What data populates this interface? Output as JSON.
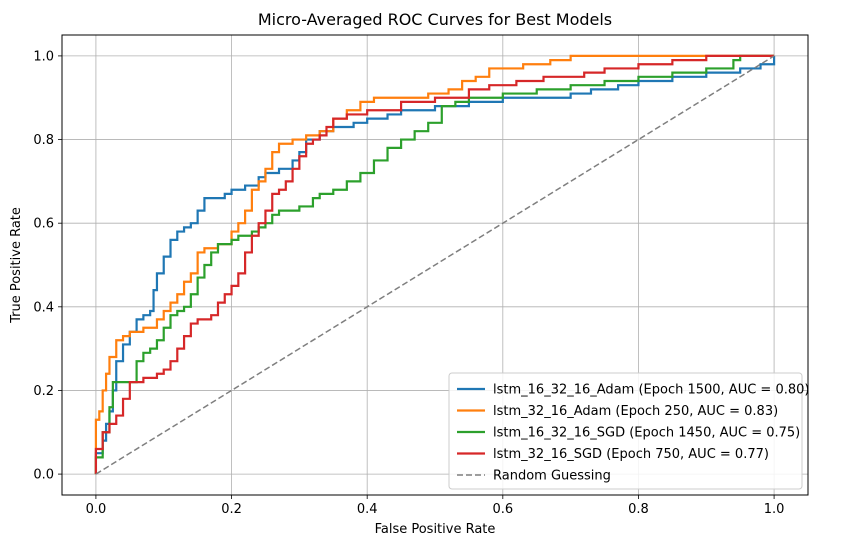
{
  "chart_data": {
    "type": "line",
    "title": "Micro-Averaged ROC Curves for Best Models",
    "xlabel": "False Positive Rate",
    "ylabel": "True Positive Rate",
    "xlim": [
      -0.05,
      1.05
    ],
    "ylim": [
      -0.05,
      1.05
    ],
    "xticks": [
      "0.0",
      "0.2",
      "0.4",
      "0.6",
      "0.8",
      "1.0"
    ],
    "yticks": [
      "0.0",
      "0.2",
      "0.4",
      "0.6",
      "0.8",
      "1.0"
    ],
    "grid": true,
    "legend_position": "lower-right",
    "series": [
      {
        "name": "lstm_16_32_16_Adam (Epoch 1500, AUC = 0.80)",
        "color": "#1f77b4",
        "dashed": false,
        "points": [
          [
            0,
            0
          ],
          [
            0,
            0.05
          ],
          [
            0.01,
            0.08
          ],
          [
            0.015,
            0.12
          ],
          [
            0.02,
            0.15
          ],
          [
            0.025,
            0.2
          ],
          [
            0.03,
            0.27
          ],
          [
            0.04,
            0.31
          ],
          [
            0.05,
            0.34
          ],
          [
            0.06,
            0.37
          ],
          [
            0.07,
            0.38
          ],
          [
            0.08,
            0.39
          ],
          [
            0.085,
            0.44
          ],
          [
            0.09,
            0.48
          ],
          [
            0.1,
            0.52
          ],
          [
            0.11,
            0.56
          ],
          [
            0.12,
            0.58
          ],
          [
            0.13,
            0.59
          ],
          [
            0.14,
            0.6
          ],
          [
            0.15,
            0.63
          ],
          [
            0.16,
            0.66
          ],
          [
            0.18,
            0.66
          ],
          [
            0.19,
            0.67
          ],
          [
            0.2,
            0.68
          ],
          [
            0.22,
            0.69
          ],
          [
            0.24,
            0.71
          ],
          [
            0.25,
            0.72
          ],
          [
            0.27,
            0.73
          ],
          [
            0.29,
            0.75
          ],
          [
            0.3,
            0.77
          ],
          [
            0.31,
            0.8
          ],
          [
            0.33,
            0.82
          ],
          [
            0.35,
            0.83
          ],
          [
            0.38,
            0.84
          ],
          [
            0.4,
            0.85
          ],
          [
            0.43,
            0.86
          ],
          [
            0.45,
            0.87
          ],
          [
            0.48,
            0.87
          ],
          [
            0.5,
            0.88
          ],
          [
            0.52,
            0.88
          ],
          [
            0.55,
            0.89
          ],
          [
            0.58,
            0.89
          ],
          [
            0.6,
            0.9
          ],
          [
            0.65,
            0.9
          ],
          [
            0.7,
            0.91
          ],
          [
            0.73,
            0.92
          ],
          [
            0.77,
            0.93
          ],
          [
            0.8,
            0.94
          ],
          [
            0.85,
            0.95
          ],
          [
            0.9,
            0.96
          ],
          [
            0.95,
            0.97
          ],
          [
            0.98,
            0.98
          ],
          [
            1,
            0.99
          ],
          [
            1,
            1
          ]
        ]
      },
      {
        "name": "lstm_32_16_Adam (Epoch 250, AUC = 0.83)",
        "color": "#ff7f0e",
        "dashed": false,
        "points": [
          [
            0,
            0
          ],
          [
            0,
            0.13
          ],
          [
            0.005,
            0.15
          ],
          [
            0.01,
            0.2
          ],
          [
            0.015,
            0.24
          ],
          [
            0.02,
            0.28
          ],
          [
            0.03,
            0.32
          ],
          [
            0.04,
            0.33
          ],
          [
            0.05,
            0.34
          ],
          [
            0.07,
            0.35
          ],
          [
            0.09,
            0.37
          ],
          [
            0.1,
            0.39
          ],
          [
            0.11,
            0.41
          ],
          [
            0.12,
            0.43
          ],
          [
            0.13,
            0.46
          ],
          [
            0.14,
            0.48
          ],
          [
            0.15,
            0.53
          ],
          [
            0.16,
            0.54
          ],
          [
            0.18,
            0.55
          ],
          [
            0.2,
            0.58
          ],
          [
            0.21,
            0.6
          ],
          [
            0.22,
            0.63
          ],
          [
            0.23,
            0.68
          ],
          [
            0.24,
            0.7
          ],
          [
            0.25,
            0.73
          ],
          [
            0.26,
            0.77
          ],
          [
            0.27,
            0.79
          ],
          [
            0.29,
            0.8
          ],
          [
            0.31,
            0.81
          ],
          [
            0.33,
            0.82
          ],
          [
            0.35,
            0.85
          ],
          [
            0.37,
            0.87
          ],
          [
            0.39,
            0.89
          ],
          [
            0.41,
            0.9
          ],
          [
            0.45,
            0.9
          ],
          [
            0.49,
            0.91
          ],
          [
            0.52,
            0.92
          ],
          [
            0.54,
            0.94
          ],
          [
            0.56,
            0.95
          ],
          [
            0.58,
            0.97
          ],
          [
            0.62,
            0.97
          ],
          [
            0.63,
            0.98
          ],
          [
            0.67,
            0.99
          ],
          [
            0.7,
            1
          ],
          [
            1,
            1
          ]
        ]
      },
      {
        "name": "lstm_16_32_16_SGD (Epoch 1450, AUC = 0.75)",
        "color": "#2ca02c",
        "dashed": false,
        "points": [
          [
            0,
            0
          ],
          [
            0,
            0.04
          ],
          [
            0.01,
            0.1
          ],
          [
            0.02,
            0.16
          ],
          [
            0.025,
            0.22
          ],
          [
            0.05,
            0.22
          ],
          [
            0.06,
            0.27
          ],
          [
            0.07,
            0.29
          ],
          [
            0.08,
            0.3
          ],
          [
            0.09,
            0.32
          ],
          [
            0.1,
            0.35
          ],
          [
            0.11,
            0.38
          ],
          [
            0.12,
            0.39
          ],
          [
            0.13,
            0.4
          ],
          [
            0.14,
            0.43
          ],
          [
            0.15,
            0.47
          ],
          [
            0.16,
            0.5
          ],
          [
            0.17,
            0.53
          ],
          [
            0.18,
            0.55
          ],
          [
            0.2,
            0.56
          ],
          [
            0.21,
            0.57
          ],
          [
            0.23,
            0.58
          ],
          [
            0.24,
            0.59
          ],
          [
            0.25,
            0.6
          ],
          [
            0.26,
            0.62
          ],
          [
            0.27,
            0.63
          ],
          [
            0.3,
            0.64
          ],
          [
            0.32,
            0.66
          ],
          [
            0.33,
            0.67
          ],
          [
            0.35,
            0.68
          ],
          [
            0.37,
            0.7
          ],
          [
            0.39,
            0.72
          ],
          [
            0.41,
            0.75
          ],
          [
            0.43,
            0.78
          ],
          [
            0.45,
            0.8
          ],
          [
            0.47,
            0.82
          ],
          [
            0.49,
            0.84
          ],
          [
            0.51,
            0.88
          ],
          [
            0.53,
            0.89
          ],
          [
            0.55,
            0.9
          ],
          [
            0.6,
            0.91
          ],
          [
            0.65,
            0.92
          ],
          [
            0.7,
            0.93
          ],
          [
            0.75,
            0.94
          ],
          [
            0.8,
            0.95
          ],
          [
            0.85,
            0.96
          ],
          [
            0.9,
            0.97
          ],
          [
            0.94,
            0.99
          ],
          [
            0.95,
            1
          ],
          [
            1,
            1
          ]
        ]
      },
      {
        "name": "lstm_32_16_SGD (Epoch 750, AUC = 0.77)",
        "color": "#d62728",
        "dashed": false,
        "points": [
          [
            0,
            0
          ],
          [
            0,
            0.06
          ],
          [
            0.01,
            0.1
          ],
          [
            0.02,
            0.12
          ],
          [
            0.03,
            0.14
          ],
          [
            0.04,
            0.18
          ],
          [
            0.05,
            0.22
          ],
          [
            0.07,
            0.23
          ],
          [
            0.09,
            0.24
          ],
          [
            0.1,
            0.25
          ],
          [
            0.11,
            0.27
          ],
          [
            0.12,
            0.3
          ],
          [
            0.13,
            0.33
          ],
          [
            0.14,
            0.36
          ],
          [
            0.15,
            0.37
          ],
          [
            0.17,
            0.38
          ],
          [
            0.18,
            0.41
          ],
          [
            0.19,
            0.43
          ],
          [
            0.2,
            0.45
          ],
          [
            0.21,
            0.48
          ],
          [
            0.22,
            0.53
          ],
          [
            0.23,
            0.57
          ],
          [
            0.24,
            0.6
          ],
          [
            0.25,
            0.63
          ],
          [
            0.26,
            0.67
          ],
          [
            0.27,
            0.68
          ],
          [
            0.28,
            0.7
          ],
          [
            0.29,
            0.73
          ],
          [
            0.3,
            0.76
          ],
          [
            0.31,
            0.79
          ],
          [
            0.32,
            0.8
          ],
          [
            0.33,
            0.81
          ],
          [
            0.34,
            0.83
          ],
          [
            0.35,
            0.85
          ],
          [
            0.37,
            0.86
          ],
          [
            0.39,
            0.86
          ],
          [
            0.4,
            0.87
          ],
          [
            0.43,
            0.87
          ],
          [
            0.45,
            0.89
          ],
          [
            0.5,
            0.9
          ],
          [
            0.53,
            0.9
          ],
          [
            0.55,
            0.92
          ],
          [
            0.58,
            0.93
          ],
          [
            0.62,
            0.94
          ],
          [
            0.66,
            0.95
          ],
          [
            0.72,
            0.96
          ],
          [
            0.75,
            0.97
          ],
          [
            0.8,
            0.98
          ],
          [
            0.85,
            0.99
          ],
          [
            0.9,
            1
          ],
          [
            1,
            1
          ]
        ]
      },
      {
        "name": "Random Guessing",
        "color": "#7f7f7f",
        "dashed": true,
        "points": [
          [
            0,
            0
          ],
          [
            1,
            1
          ]
        ]
      }
    ]
  }
}
